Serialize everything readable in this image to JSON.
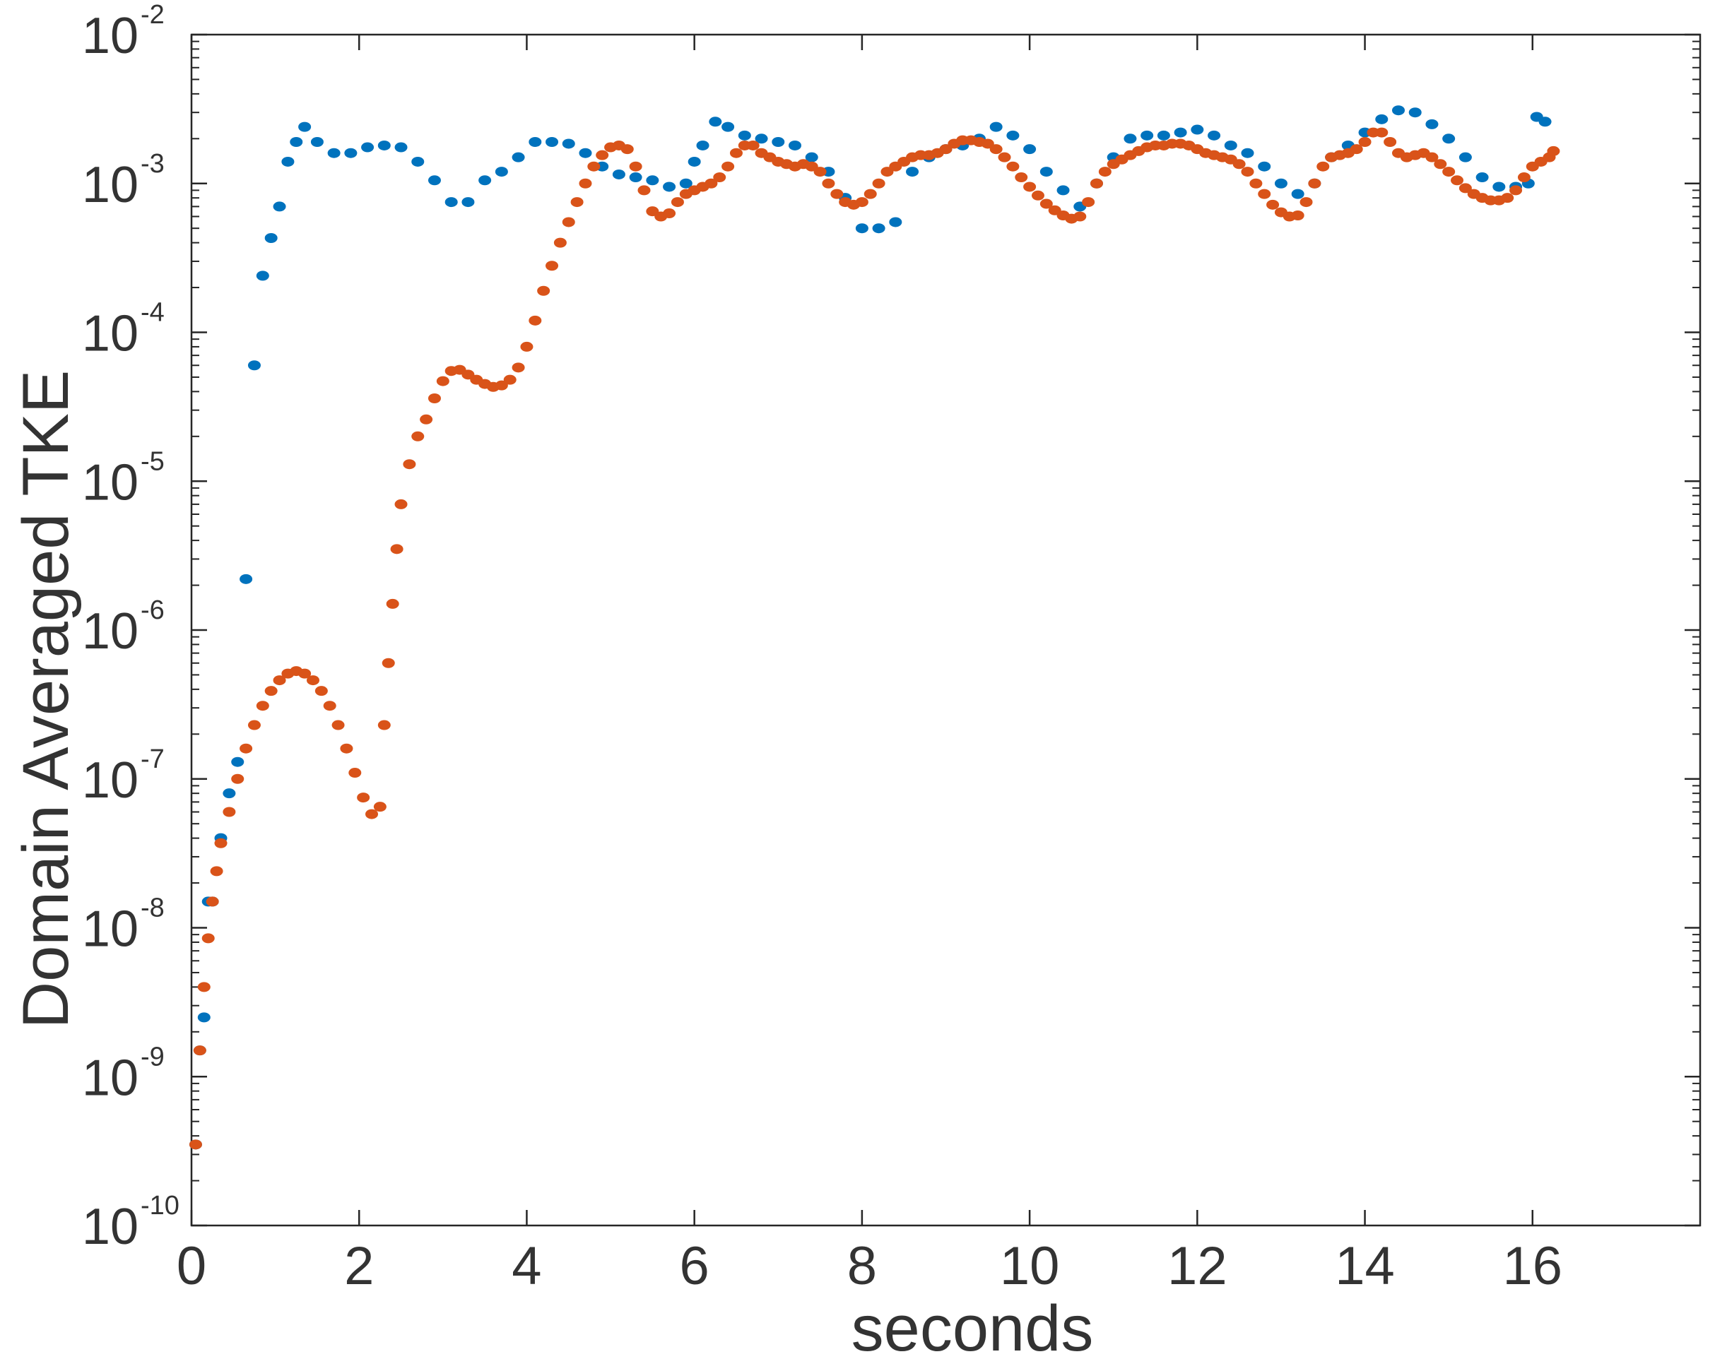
{
  "chart_data": {
    "type": "scatter",
    "title": "",
    "xlabel": "seconds",
    "ylabel": "Domain Averaged TKE",
    "xlim": [
      0,
      18
    ],
    "ylim": [
      1e-10,
      0.01
    ],
    "yscale": "log",
    "grid": false,
    "legend": "none",
    "x_ticks": [
      {
        "value": 0,
        "label": "0"
      },
      {
        "value": 2,
        "label": "2"
      },
      {
        "value": 4,
        "label": "4"
      },
      {
        "value": 6,
        "label": "6"
      },
      {
        "value": 8,
        "label": "8"
      },
      {
        "value": 10,
        "label": "10"
      },
      {
        "value": 12,
        "label": "12"
      },
      {
        "value": 14,
        "label": "14"
      },
      {
        "value": 16,
        "label": "16"
      }
    ],
    "y_ticks": [
      {
        "value": 1e-10,
        "base": "10",
        "exp": "-10"
      },
      {
        "value": 1e-09,
        "base": "10",
        "exp": "-9"
      },
      {
        "value": 1e-08,
        "base": "10",
        "exp": "-8"
      },
      {
        "value": 1e-07,
        "base": "10",
        "exp": "-7"
      },
      {
        "value": 1e-06,
        "base": "10",
        "exp": "-6"
      },
      {
        "value": 1e-05,
        "base": "10",
        "exp": "-5"
      },
      {
        "value": 0.0001,
        "base": "10",
        "exp": "-4"
      },
      {
        "value": 0.001,
        "base": "10",
        "exp": "-3"
      },
      {
        "value": 0.01,
        "base": "10",
        "exp": "-2"
      }
    ],
    "series": [
      {
        "color": "#0072BD",
        "points": [
          [
            0.05,
            3.5e-10
          ],
          [
            0.1,
            1.5e-09
          ],
          [
            0.15,
            2.5e-09
          ],
          [
            0.2,
            1.5e-08
          ],
          [
            0.25,
            1.5e-08
          ],
          [
            0.35,
            4e-08
          ],
          [
            0.45,
            8e-08
          ],
          [
            0.55,
            1.3e-07
          ],
          [
            0.65,
            2.2e-06
          ],
          [
            0.75,
            6e-05
          ],
          [
            0.85,
            0.00024
          ],
          [
            0.95,
            0.00043
          ],
          [
            1.05,
            0.0007
          ],
          [
            1.15,
            0.0014
          ],
          [
            1.25,
            0.0019
          ],
          [
            1.35,
            0.0024
          ],
          [
            1.5,
            0.0019
          ],
          [
            1.7,
            0.0016
          ],
          [
            1.9,
            0.0016
          ],
          [
            2.1,
            0.00175
          ],
          [
            2.3,
            0.0018
          ],
          [
            2.5,
            0.00175
          ],
          [
            2.7,
            0.0014
          ],
          [
            2.9,
            0.00105
          ],
          [
            3.1,
            0.00075
          ],
          [
            3.3,
            0.00075
          ],
          [
            3.5,
            0.00105
          ],
          [
            3.7,
            0.0012
          ],
          [
            3.9,
            0.0015
          ],
          [
            4.1,
            0.0019
          ],
          [
            4.3,
            0.0019
          ],
          [
            4.5,
            0.00185
          ],
          [
            4.7,
            0.0016
          ],
          [
            4.9,
            0.0013
          ],
          [
            5.1,
            0.00115
          ],
          [
            5.3,
            0.0011
          ],
          [
            5.5,
            0.00105
          ],
          [
            5.7,
            0.00095
          ],
          [
            5.9,
            0.001
          ],
          [
            6.0,
            0.0014
          ],
          [
            6.1,
            0.0018
          ],
          [
            6.25,
            0.0026
          ],
          [
            6.4,
            0.0024
          ],
          [
            6.6,
            0.0021
          ],
          [
            6.8,
            0.002
          ],
          [
            7.0,
            0.0019
          ],
          [
            7.2,
            0.0018
          ],
          [
            7.4,
            0.0015
          ],
          [
            7.6,
            0.0012
          ],
          [
            7.8,
            0.0008
          ],
          [
            8.0,
            0.0005
          ],
          [
            8.2,
            0.0005
          ],
          [
            8.4,
            0.00055
          ],
          [
            8.6,
            0.0012
          ],
          [
            8.8,
            0.0015
          ],
          [
            9.0,
            0.0017
          ],
          [
            9.2,
            0.0018
          ],
          [
            9.4,
            0.002
          ],
          [
            9.6,
            0.0024
          ],
          [
            9.8,
            0.0021
          ],
          [
            10.0,
            0.0017
          ],
          [
            10.2,
            0.0012
          ],
          [
            10.4,
            0.0009
          ],
          [
            10.6,
            0.0007
          ],
          [
            10.8,
            0.001
          ],
          [
            11.0,
            0.0015
          ],
          [
            11.2,
            0.002
          ],
          [
            11.4,
            0.0021
          ],
          [
            11.6,
            0.0021
          ],
          [
            11.8,
            0.0022
          ],
          [
            12.0,
            0.0023
          ],
          [
            12.2,
            0.0021
          ],
          [
            12.4,
            0.0018
          ],
          [
            12.6,
            0.0016
          ],
          [
            12.8,
            0.0013
          ],
          [
            13.0,
            0.001
          ],
          [
            13.2,
            0.00085
          ],
          [
            13.4,
            0.001
          ],
          [
            13.6,
            0.0015
          ],
          [
            13.8,
            0.0018
          ],
          [
            14.0,
            0.0022
          ],
          [
            14.2,
            0.0027
          ],
          [
            14.4,
            0.0031
          ],
          [
            14.6,
            0.003
          ],
          [
            14.8,
            0.0025
          ],
          [
            15.0,
            0.002
          ],
          [
            15.2,
            0.0015
          ],
          [
            15.4,
            0.0011
          ],
          [
            15.6,
            0.00095
          ],
          [
            15.8,
            0.00095
          ],
          [
            15.95,
            0.001
          ],
          [
            16.05,
            0.0028
          ],
          [
            16.15,
            0.0026
          ]
        ]
      },
      {
        "color": "#D95319",
        "points": [
          [
            0.05,
            3.5e-10
          ],
          [
            0.1,
            1.5e-09
          ],
          [
            0.15,
            4e-09
          ],
          [
            0.2,
            8.5e-09
          ],
          [
            0.25,
            1.5e-08
          ],
          [
            0.3,
            2.4e-08
          ],
          [
            0.35,
            3.7e-08
          ],
          [
            0.45,
            6e-08
          ],
          [
            0.55,
            1e-07
          ],
          [
            0.65,
            1.6e-07
          ],
          [
            0.75,
            2.3e-07
          ],
          [
            0.85,
            3.1e-07
          ],
          [
            0.95,
            3.9e-07
          ],
          [
            1.05,
            4.6e-07
          ],
          [
            1.15,
            5.1e-07
          ],
          [
            1.25,
            5.3e-07
          ],
          [
            1.35,
            5.1e-07
          ],
          [
            1.45,
            4.6e-07
          ],
          [
            1.55,
            3.9e-07
          ],
          [
            1.65,
            3.1e-07
          ],
          [
            1.75,
            2.3e-07
          ],
          [
            1.85,
            1.6e-07
          ],
          [
            1.95,
            1.1e-07
          ],
          [
            2.05,
            7.5e-08
          ],
          [
            2.15,
            5.8e-08
          ],
          [
            2.25,
            6.5e-08
          ],
          [
            2.3,
            2.3e-07
          ],
          [
            2.35,
            6e-07
          ],
          [
            2.4,
            1.5e-06
          ],
          [
            2.45,
            3.5e-06
          ],
          [
            2.5,
            7e-06
          ],
          [
            2.6,
            1.3e-05
          ],
          [
            2.7,
            2e-05
          ],
          [
            2.8,
            2.6e-05
          ],
          [
            2.9,
            3.6e-05
          ],
          [
            3.0,
            4.7e-05
          ],
          [
            3.1,
            5.5e-05
          ],
          [
            3.2,
            5.6e-05
          ],
          [
            3.3,
            5.2e-05
          ],
          [
            3.4,
            4.8e-05
          ],
          [
            3.5,
            4.5e-05
          ],
          [
            3.6,
            4.3e-05
          ],
          [
            3.7,
            4.4e-05
          ],
          [
            3.8,
            4.8e-05
          ],
          [
            3.9,
            5.8e-05
          ],
          [
            4.0,
            8e-05
          ],
          [
            4.1,
            0.00012
          ],
          [
            4.2,
            0.00019
          ],
          [
            4.3,
            0.00028
          ],
          [
            4.4,
            0.0004
          ],
          [
            4.5,
            0.00055
          ],
          [
            4.6,
            0.00075
          ],
          [
            4.7,
            0.001
          ],
          [
            4.8,
            0.0013
          ],
          [
            4.9,
            0.00155
          ],
          [
            5.0,
            0.00175
          ],
          [
            5.1,
            0.0018
          ],
          [
            5.2,
            0.0017
          ],
          [
            5.3,
            0.0013
          ],
          [
            5.4,
            0.0009
          ],
          [
            5.5,
            0.00065
          ],
          [
            5.6,
            0.0006
          ],
          [
            5.7,
            0.00063
          ],
          [
            5.8,
            0.00075
          ],
          [
            5.9,
            0.00085
          ],
          [
            6.0,
            0.0009
          ],
          [
            6.1,
            0.00095
          ],
          [
            6.2,
            0.001
          ],
          [
            6.3,
            0.0011
          ],
          [
            6.4,
            0.0013
          ],
          [
            6.5,
            0.0016
          ],
          [
            6.6,
            0.0018
          ],
          [
            6.7,
            0.0018
          ],
          [
            6.8,
            0.0016
          ],
          [
            6.9,
            0.0015
          ],
          [
            7.0,
            0.0014
          ],
          [
            7.1,
            0.00135
          ],
          [
            7.2,
            0.0013
          ],
          [
            7.3,
            0.00135
          ],
          [
            7.4,
            0.0013
          ],
          [
            7.5,
            0.0012
          ],
          [
            7.6,
            0.001
          ],
          [
            7.7,
            0.00085
          ],
          [
            7.8,
            0.00075
          ],
          [
            7.9,
            0.00072
          ],
          [
            8.0,
            0.00075
          ],
          [
            8.1,
            0.00085
          ],
          [
            8.2,
            0.001
          ],
          [
            8.3,
            0.0012
          ],
          [
            8.4,
            0.0013
          ],
          [
            8.5,
            0.0014
          ],
          [
            8.6,
            0.0015
          ],
          [
            8.7,
            0.00155
          ],
          [
            8.8,
            0.00155
          ],
          [
            8.9,
            0.0016
          ],
          [
            9.0,
            0.0017
          ],
          [
            9.1,
            0.00185
          ],
          [
            9.2,
            0.00195
          ],
          [
            9.3,
            0.00195
          ],
          [
            9.4,
            0.0019
          ],
          [
            9.5,
            0.00185
          ],
          [
            9.6,
            0.0017
          ],
          [
            9.7,
            0.0015
          ],
          [
            9.8,
            0.0013
          ],
          [
            9.9,
            0.0011
          ],
          [
            10.0,
            0.00095
          ],
          [
            10.1,
            0.00083
          ],
          [
            10.2,
            0.00073
          ],
          [
            10.3,
            0.00066
          ],
          [
            10.4,
            0.00061
          ],
          [
            10.5,
            0.00058
          ],
          [
            10.6,
            0.0006
          ],
          [
            10.7,
            0.00075
          ],
          [
            10.8,
            0.001
          ],
          [
            10.9,
            0.0012
          ],
          [
            11.0,
            0.00135
          ],
          [
            11.1,
            0.00145
          ],
          [
            11.2,
            0.00155
          ],
          [
            11.3,
            0.00165
          ],
          [
            11.4,
            0.00175
          ],
          [
            11.5,
            0.0018
          ],
          [
            11.6,
            0.0018
          ],
          [
            11.7,
            0.00185
          ],
          [
            11.8,
            0.00185
          ],
          [
            11.9,
            0.0018
          ],
          [
            12.0,
            0.0017
          ],
          [
            12.1,
            0.0016
          ],
          [
            12.2,
            0.00155
          ],
          [
            12.3,
            0.0015
          ],
          [
            12.4,
            0.00145
          ],
          [
            12.5,
            0.00135
          ],
          [
            12.6,
            0.0012
          ],
          [
            12.7,
            0.001
          ],
          [
            12.8,
            0.00085
          ],
          [
            12.9,
            0.00072
          ],
          [
            13.0,
            0.00064
          ],
          [
            13.1,
            0.0006
          ],
          [
            13.2,
            0.00061
          ],
          [
            13.3,
            0.00075
          ],
          [
            13.4,
            0.001
          ],
          [
            13.5,
            0.0013
          ],
          [
            13.6,
            0.0015
          ],
          [
            13.7,
            0.00155
          ],
          [
            13.8,
            0.0016
          ],
          [
            13.9,
            0.0017
          ],
          [
            14.0,
            0.0019
          ],
          [
            14.1,
            0.0022
          ],
          [
            14.2,
            0.0022
          ],
          [
            14.3,
            0.0019
          ],
          [
            14.4,
            0.0016
          ],
          [
            14.5,
            0.0015
          ],
          [
            14.6,
            0.00155
          ],
          [
            14.7,
            0.0016
          ],
          [
            14.8,
            0.0015
          ],
          [
            14.9,
            0.00135
          ],
          [
            15.0,
            0.0012
          ],
          [
            15.1,
            0.00105
          ],
          [
            15.2,
            0.00093
          ],
          [
            15.3,
            0.00085
          ],
          [
            15.4,
            0.0008
          ],
          [
            15.5,
            0.00077
          ],
          [
            15.6,
            0.00077
          ],
          [
            15.7,
            0.0008
          ],
          [
            15.8,
            0.0009
          ],
          [
            15.9,
            0.0011
          ],
          [
            16.0,
            0.0013
          ],
          [
            16.1,
            0.0014
          ],
          [
            16.2,
            0.0015
          ],
          [
            16.25,
            0.00165
          ]
        ]
      }
    ]
  }
}
